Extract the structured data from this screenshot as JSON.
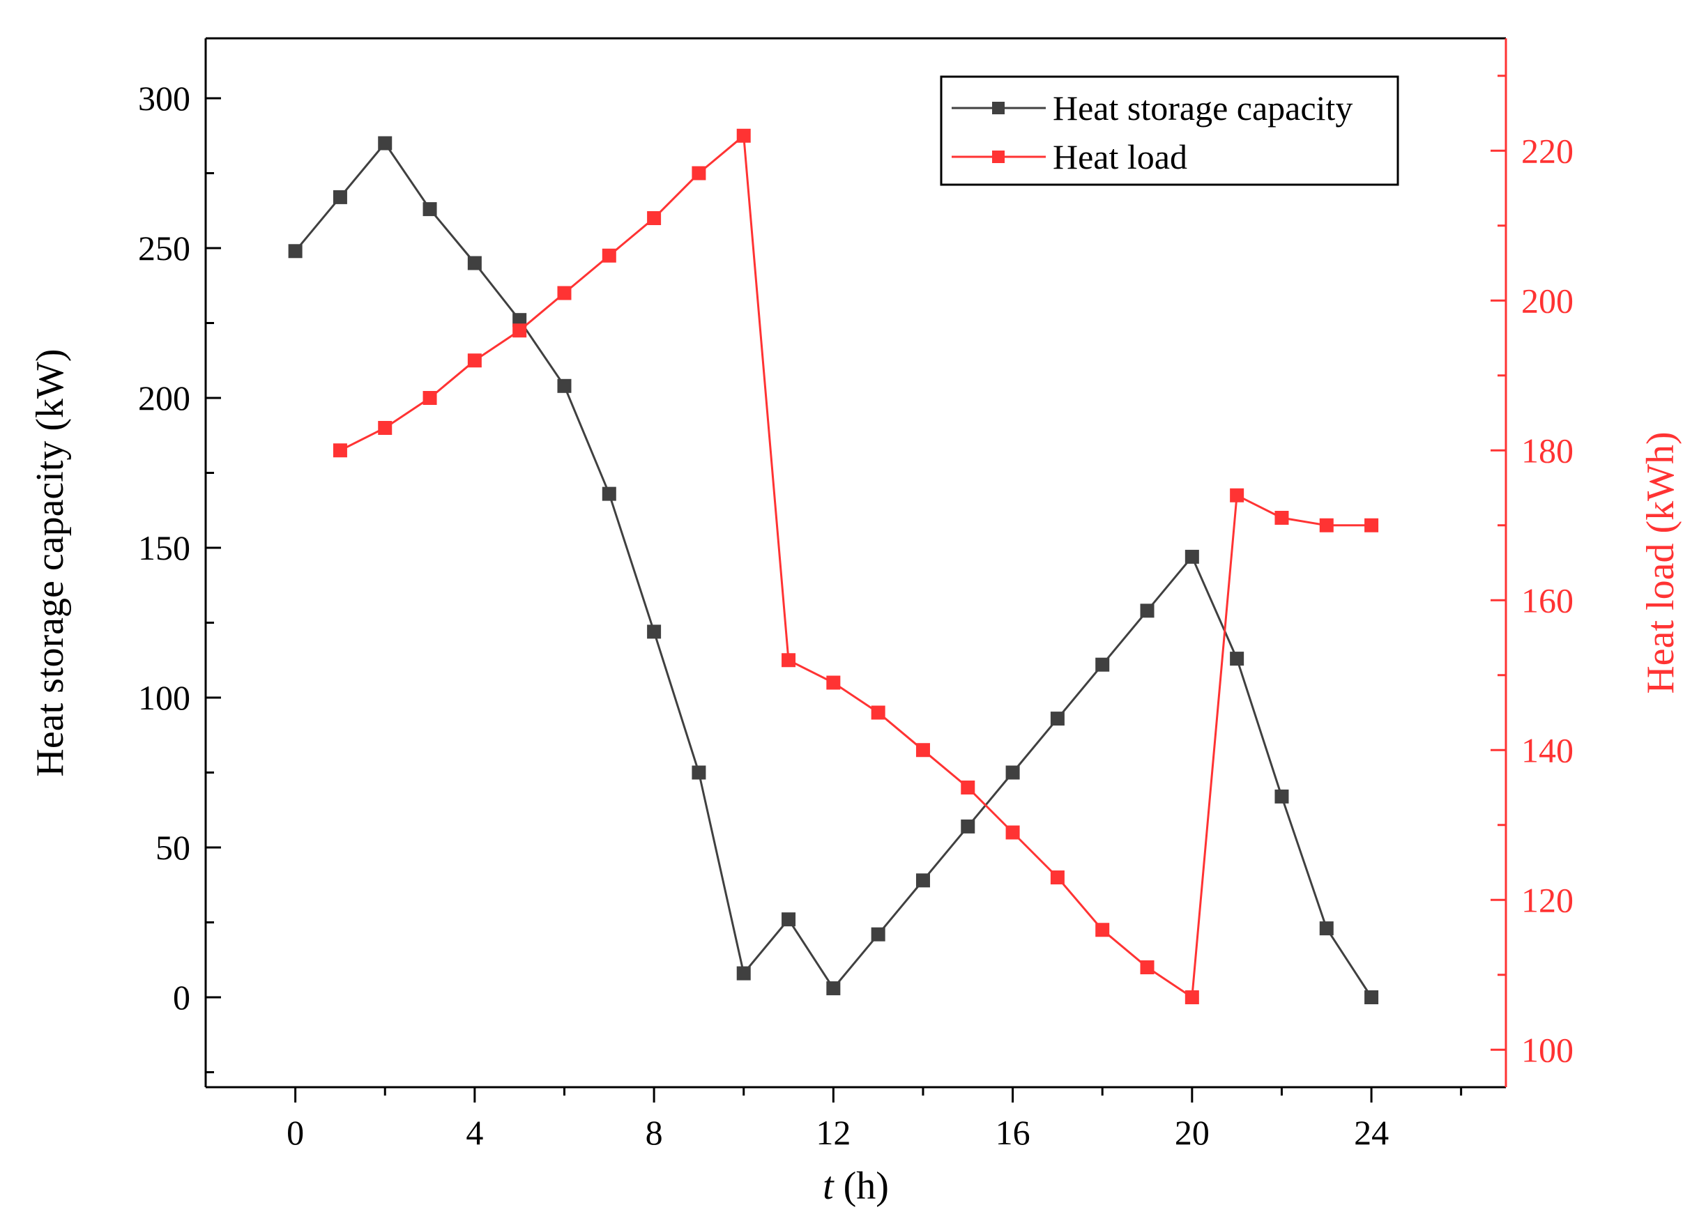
{
  "chart_data": {
    "type": "line",
    "title": "",
    "xlabel": {
      "var": "t",
      "unit": " (h)"
    },
    "ylabel": "Heat storage capacity (kW)",
    "y2label": "Heat load (kWh)",
    "xlim": [
      -2,
      27
    ],
    "ylim": [
      -30,
      320
    ],
    "y2lim": [
      95,
      235
    ],
    "xticks": [
      0,
      4,
      8,
      12,
      16,
      20,
      24
    ],
    "yticks": [
      0,
      50,
      100,
      150,
      200,
      250,
      300
    ],
    "y2ticks": [
      100,
      120,
      140,
      160,
      180,
      200,
      220
    ],
    "grid": false,
    "legend_position": "top-right",
    "colors": {
      "series1": "#404040",
      "series2": "#ff3333",
      "axes": "#000000"
    },
    "series": [
      {
        "name": "Heat storage capacity",
        "axis": "left",
        "x": [
          0,
          1,
          2,
          3,
          4,
          5,
          6,
          7,
          8,
          9,
          10,
          11,
          12,
          13,
          14,
          15,
          16,
          17,
          18,
          19,
          20,
          21,
          22,
          23,
          24
        ],
        "values": [
          249,
          267,
          285,
          263,
          245,
          226,
          204,
          168,
          122,
          75,
          8,
          26,
          3,
          21,
          39,
          57,
          75,
          93,
          111,
          129,
          147,
          113,
          67,
          23,
          0
        ]
      },
      {
        "name": "Heat load",
        "axis": "right",
        "x": [
          1,
          2,
          3,
          4,
          5,
          6,
          7,
          8,
          9,
          10,
          11,
          12,
          13,
          14,
          15,
          16,
          17,
          18,
          19,
          20,
          21,
          22,
          23,
          24
        ],
        "values": [
          180,
          183,
          187,
          192,
          196,
          201,
          206,
          211,
          217,
          222,
          152,
          149,
          145,
          140,
          135,
          129,
          123,
          116,
          111,
          107,
          174,
          171,
          170,
          170
        ]
      }
    ]
  }
}
